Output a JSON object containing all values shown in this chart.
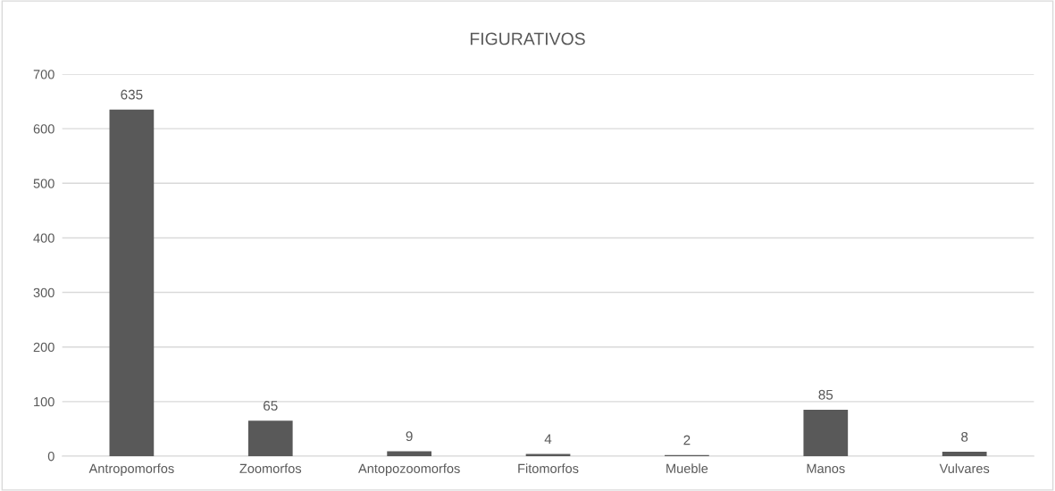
{
  "chart_data": {
    "type": "bar",
    "title": "FIGURATIVOS",
    "categories": [
      "Antropomorfos",
      "Zoomorfos",
      "Antopozoomorfos",
      "Fitomorfos",
      "Mueble",
      "Manos",
      "Vulvares"
    ],
    "values": [
      635,
      65,
      9,
      4,
      2,
      85,
      8
    ],
    "color": "#595959",
    "ylim": [
      0,
      700
    ],
    "yticks": [
      0,
      100,
      200,
      300,
      400,
      500,
      600,
      700
    ],
    "grid": "y",
    "data_labels": true
  }
}
